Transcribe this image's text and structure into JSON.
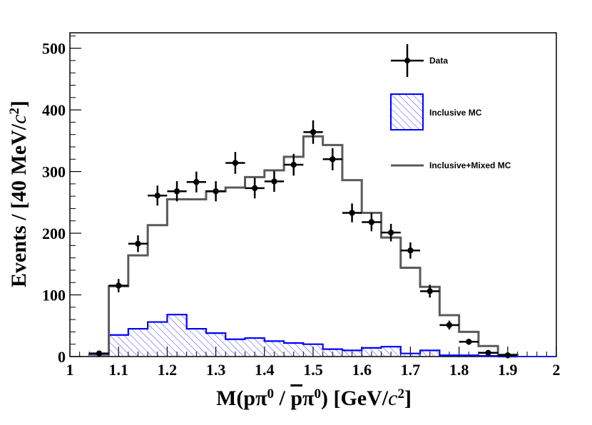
{
  "chart_data": {
    "type": "histogram",
    "xlabel_parts": [
      "M(p",
      "π",
      "0",
      " /  ",
      "p",
      "π",
      "0",
      ") [GeV/",
      "c",
      "2",
      "]"
    ],
    "ylabel_parts": [
      "Events / [40 MeV/",
      "c",
      "2",
      "]"
    ],
    "xlim": [
      1.0,
      2.0
    ],
    "ylim": [
      0,
      525
    ],
    "x_ticks": [
      1.0,
      1.1,
      1.2,
      1.3,
      1.4,
      1.5,
      1.6,
      1.7,
      1.8,
      1.9,
      2.0
    ],
    "x_tick_labels": [
      "1",
      "1.1",
      "1.2",
      "1.3",
      "1.4",
      "1.5",
      "1.6",
      "1.7",
      "1.8",
      "1.9",
      "2"
    ],
    "y_ticks": [
      0,
      100,
      200,
      300,
      400,
      500
    ],
    "y_tick_labels": [
      "0",
      "100",
      "200",
      "300",
      "400",
      "500"
    ],
    "bin_edges": [
      1.04,
      1.08,
      1.12,
      1.16,
      1.2,
      1.24,
      1.28,
      1.32,
      1.36,
      1.4,
      1.44,
      1.48,
      1.52,
      1.56,
      1.6,
      1.64,
      1.68,
      1.72,
      1.76,
      1.8,
      1.84,
      1.88,
      1.92
    ],
    "series": [
      {
        "name": "Data",
        "style": "points",
        "color": "#000000",
        "x": [
          1.06,
          1.1,
          1.14,
          1.18,
          1.22,
          1.26,
          1.3,
          1.34,
          1.38,
          1.42,
          1.46,
          1.5,
          1.54,
          1.58,
          1.62,
          1.66,
          1.7,
          1.74,
          1.78,
          1.82,
          1.86,
          1.9
        ],
        "values": [
          5,
          115,
          183,
          261,
          268,
          283,
          268,
          314,
          273,
          284,
          311,
          364,
          320,
          233,
          218,
          201,
          172,
          106,
          51,
          24,
          6,
          2
        ]
      },
      {
        "name": "Inclusive MC",
        "style": "hatched-step",
        "color": "#0000ff",
        "values": [
          3,
          35,
          45,
          56,
          68,
          45,
          38,
          28,
          30,
          25,
          22,
          20,
          12,
          10,
          14,
          16,
          5,
          10,
          2,
          2,
          1,
          0
        ]
      },
      {
        "name": "Inclusive+Mixed MC",
        "style": "step",
        "color": "#5a5a5a",
        "values": [
          4,
          114,
          164,
          213,
          255,
          255,
          268,
          274,
          291,
          302,
          324,
          357,
          343,
          286,
          233,
          193,
          144,
          113,
          67,
          40,
          17,
          3
        ]
      }
    ],
    "legend": [
      {
        "label": "Data",
        "style": "points"
      },
      {
        "label": "Inclusive MC",
        "style": "hatched-box"
      },
      {
        "label": "Inclusive+Mixed MC",
        "style": "line"
      }
    ],
    "legend_position": "top-right"
  }
}
